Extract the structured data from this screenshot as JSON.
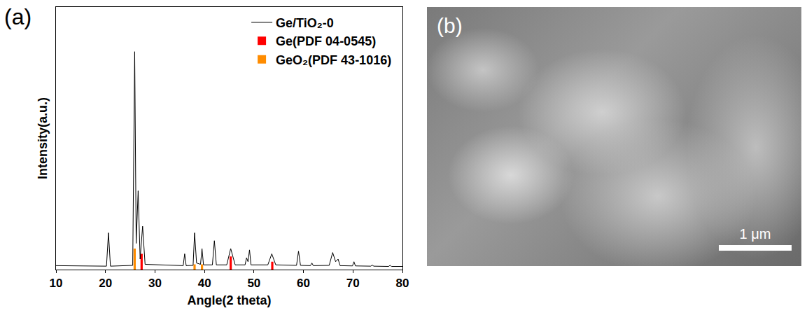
{
  "chart_data": {
    "type": "line",
    "annotations": [
      "(a)"
    ],
    "x_label": "Angle(2 theta)",
    "y_label": "Intensity(a.u.)",
    "xlim": [
      10,
      80
    ],
    "xticks": [
      10,
      20,
      30,
      40,
      50,
      60,
      70,
      80
    ],
    "ylim": [
      0,
      100
    ],
    "yticks": [],
    "tick_labels": "x",
    "grid": false,
    "legend": "top right",
    "series": [
      {
        "name": "Ge/TiO₂-0",
        "type": "line",
        "color": "#000000",
        "x": [
          10,
          20.2,
          20.6,
          21.0,
          25.5,
          25.9,
          26.2,
          26.6,
          27.0,
          27.5,
          28.0,
          35.7,
          36.0,
          36.3,
          37.7,
          38.0,
          38.4,
          39.2,
          39.5,
          39.8,
          41.6,
          42.0,
          42.4,
          44.5,
          45.3,
          46.2,
          48.2,
          48.5,
          48.8,
          49.1,
          49.4,
          52.8,
          53.6,
          54.4,
          58.6,
          59.0,
          59.4,
          61.4,
          61.7,
          62.0,
          65.2,
          65.9,
          66.5,
          67.0,
          67.4,
          69.9,
          70.2,
          70.5,
          73.6,
          73.9,
          74.2,
          77.2,
          77.5,
          77.8,
          80
        ],
        "values": [
          1.5,
          1.3,
          14,
          1.3,
          1.6,
          83,
          10,
          30,
          4,
          16.5,
          2,
          1.5,
          6,
          1.5,
          1.6,
          14,
          2.5,
          2,
          8,
          1.8,
          1.8,
          11,
          1.8,
          1.8,
          8,
          1.8,
          1.8,
          4.5,
          3,
          7.5,
          1.8,
          1.8,
          6,
          1.8,
          1.6,
          7,
          1.6,
          1.5,
          2.5,
          1.5,
          1.6,
          6.5,
          3,
          4,
          1.5,
          1.4,
          3,
          1.4,
          1.3,
          1.7,
          1.3,
          1.2,
          1.6,
          1.2,
          1.2
        ]
      },
      {
        "name": "Ge(PDF 04-0545)",
        "type": "bar",
        "color": "#ff0000",
        "x": [
          27.3,
          45.3,
          53.7
        ],
        "values": [
          6,
          5,
          3
        ]
      },
      {
        "name": "GeO₂(PDF 43-1016)",
        "type": "bar",
        "color": "#ff8c00",
        "x": [
          25.9,
          38.0,
          39.5
        ],
        "values": [
          8,
          2,
          2
        ]
      }
    ]
  },
  "image_panel": {
    "label": "(b)",
    "scale_bar": "1 μm"
  }
}
